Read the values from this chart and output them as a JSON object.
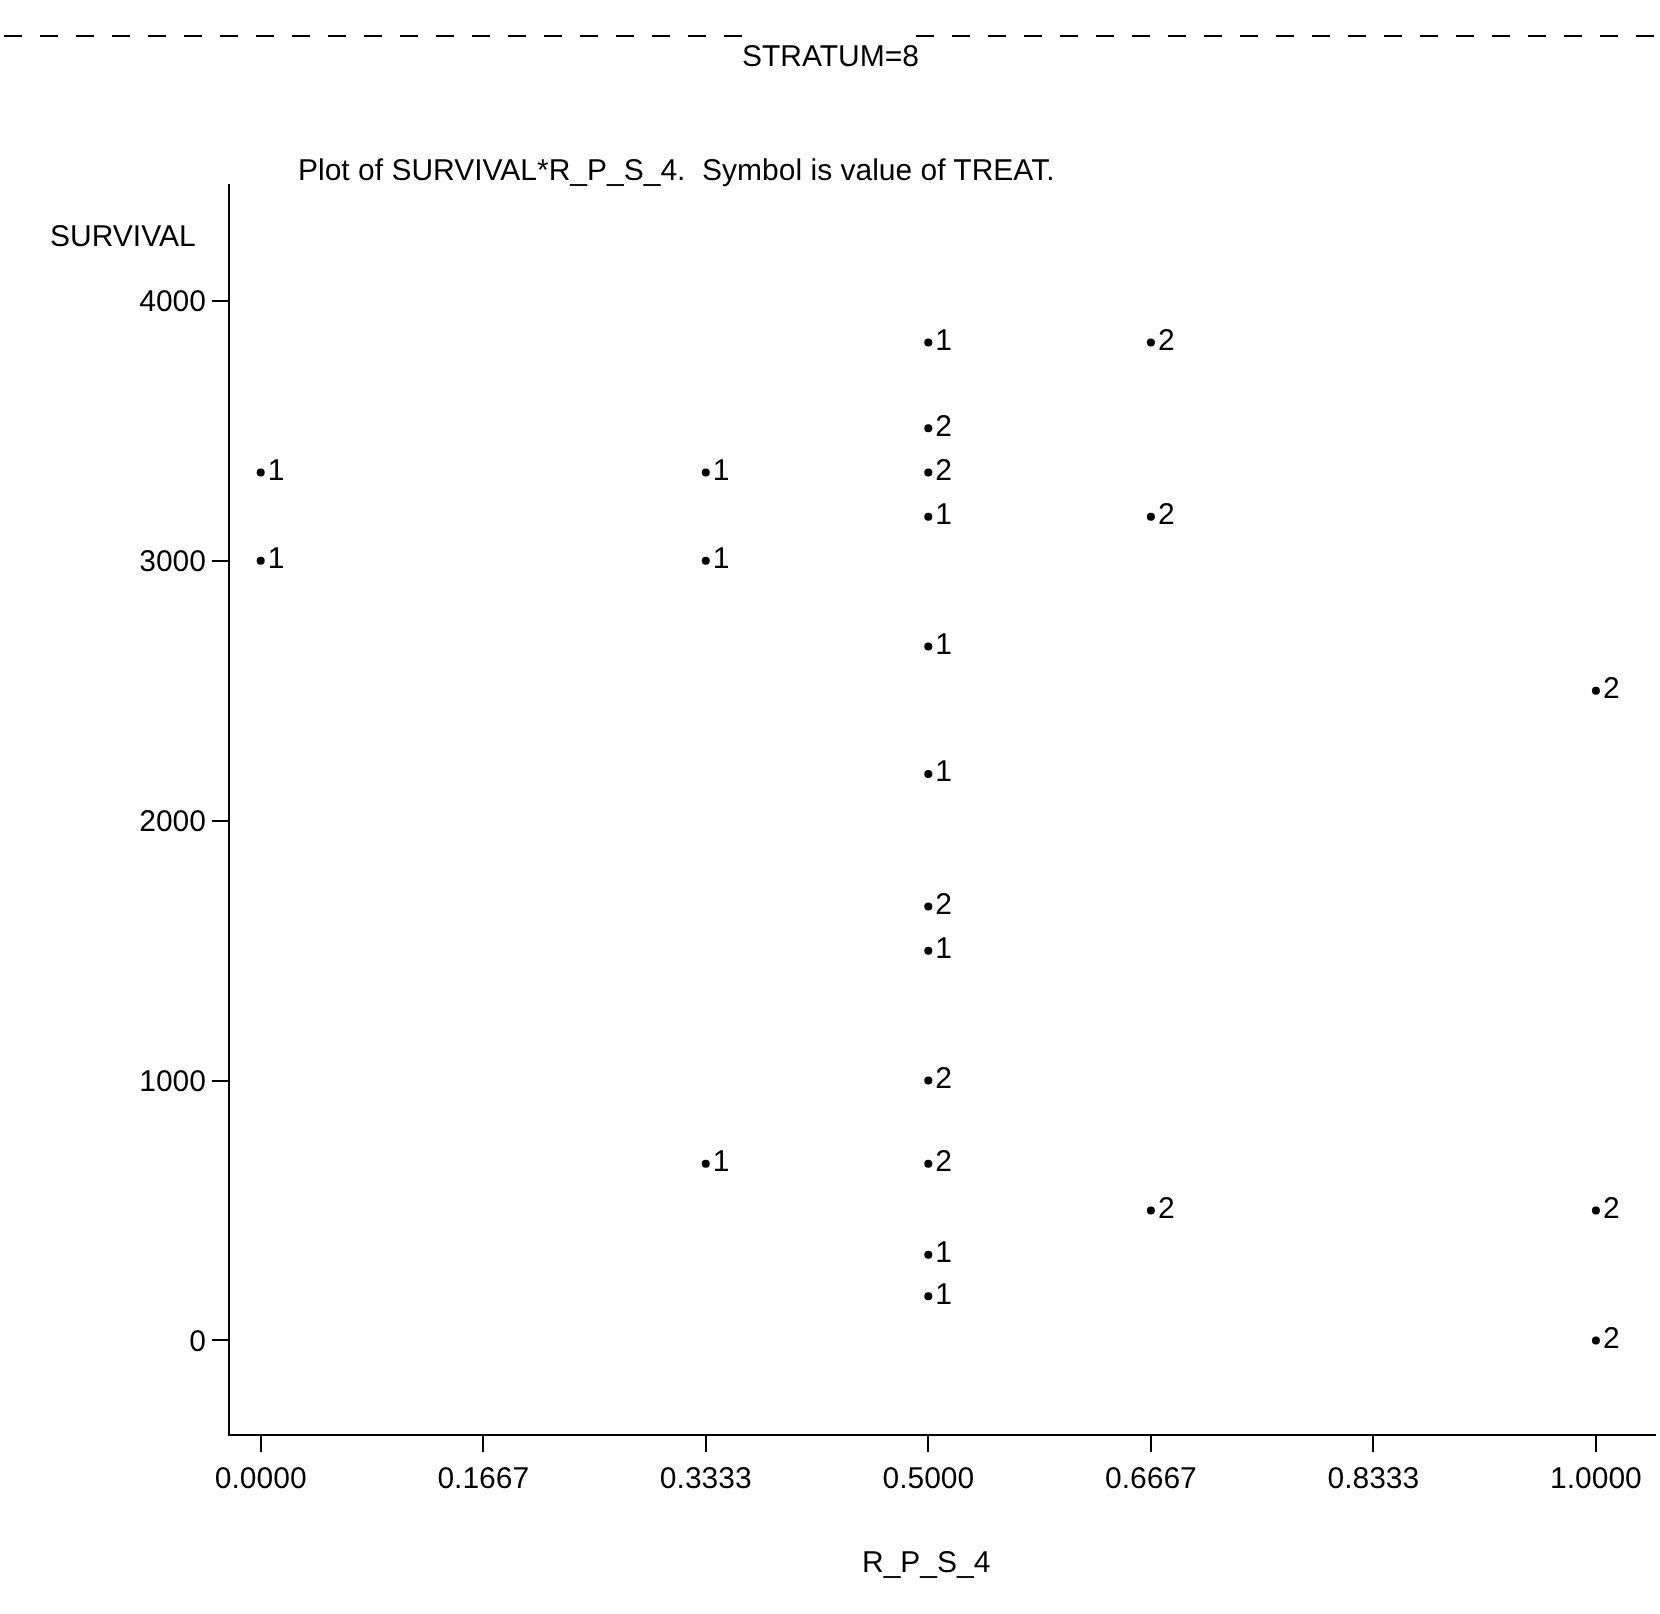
{
  "chart_data": {
    "type": "scatter",
    "title": "STRATUM=8",
    "subtitle": "Plot of SURVIVAL*R_P_S_4.  Symbol is value of TREAT.",
    "xlabel": "R_P_S_4",
    "ylabel": "SURVIVAL",
    "series": [
      {
        "name": "1",
        "color": "#000000",
        "x": [
          0,
          0,
          0.3333,
          0.3333,
          0.3333,
          0.5,
          0.5,
          0.5,
          0.5,
          0.5,
          0.5,
          0.5
        ],
        "values": [
          3340,
          3000,
          3340,
          3000,
          680,
          3840,
          3170,
          2670,
          2180,
          1500,
          330,
          170
        ]
      },
      {
        "name": "2",
        "color": "#000000",
        "x": [
          0.5,
          0.5,
          0.5,
          0.5,
          0.5,
          0.6667,
          0.6667,
          0.6667,
          1,
          1,
          1
        ],
        "values": [
          3510,
          3340,
          1670,
          1000,
          680,
          3840,
          3170,
          500,
          2500,
          500,
          0
        ]
      }
    ],
    "xlim": [
      -0.023,
      1.045
    ],
    "ylim": [
      -360,
      4450
    ],
    "xticks": [
      {
        "value": 0,
        "label": "0.0000"
      },
      {
        "value": 0.1667,
        "label": "0.1667"
      },
      {
        "value": 0.3333,
        "label": "0.3333"
      },
      {
        "value": 0.5,
        "label": "0.5000"
      },
      {
        "value": 0.6667,
        "label": "0.6667"
      },
      {
        "value": 0.8333,
        "label": "0.8333"
      },
      {
        "value": 1,
        "label": "1.0000"
      }
    ],
    "yticks": [
      0,
      1000,
      2000,
      3000,
      4000
    ],
    "legend": false
  }
}
